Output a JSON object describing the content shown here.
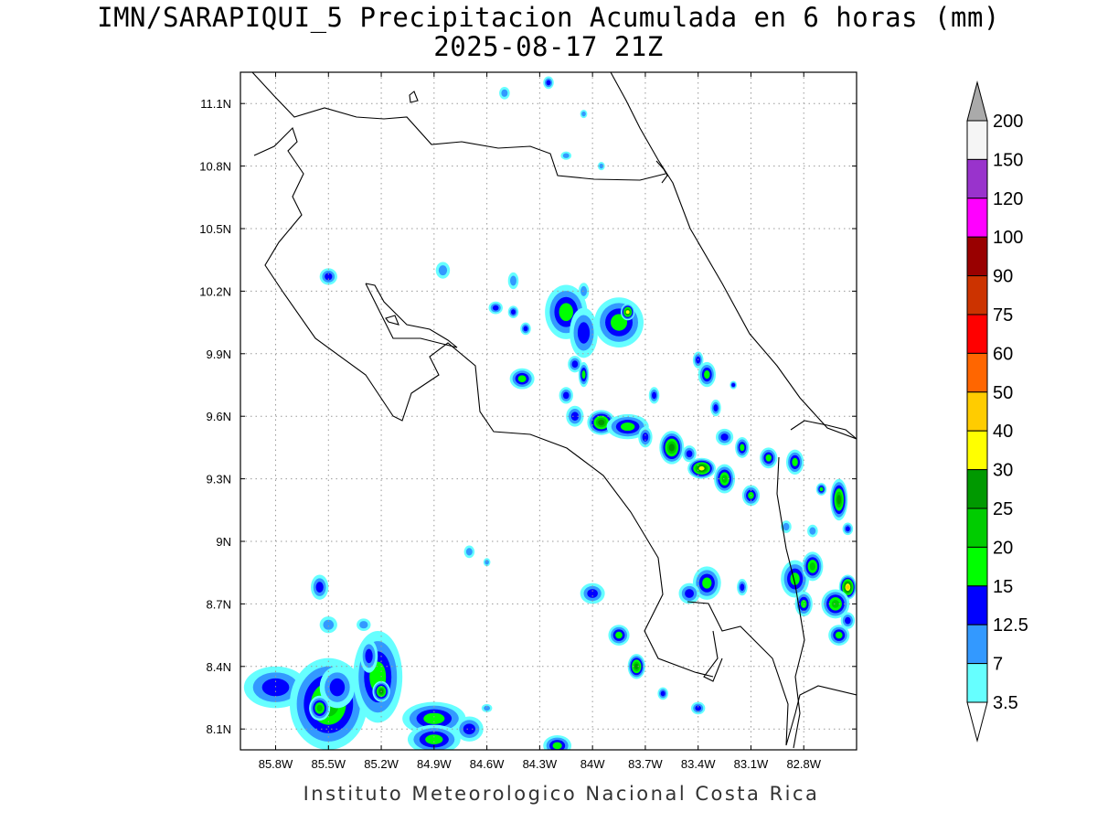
{
  "title_line1": "IMN/SARAPIQUI_5 Precipitacion Acumulada en 6 horas (mm)",
  "title_line2": "2025-08-17 21Z",
  "footer": "Instituto Meteorologico Nacional Costa Rica",
  "map": {
    "lon_range": [
      -86.0,
      -82.5
    ],
    "lat_range": [
      8.0,
      11.25
    ],
    "lat_ticks": [
      "11.1N",
      "10.8N",
      "10.5N",
      "10.2N",
      "9.9N",
      "9.6N",
      "9.3N",
      "9N",
      "8.7N",
      "8.4N",
      "8.1N"
    ],
    "lon_ticks": [
      "85.8W",
      "85.5W",
      "85.2W",
      "84.9W",
      "84.6W",
      "84.3W",
      "84W",
      "83.7W",
      "83.4W",
      "83.1W",
      "82.8W"
    ],
    "gridlines": "dotted"
  },
  "colorbar": {
    "labels": [
      "200",
      "150",
      "120",
      "100",
      "90",
      "75",
      "60",
      "50",
      "40",
      "30",
      "25",
      "20",
      "15",
      "12.5",
      "7",
      "3.5"
    ],
    "colors": [
      "#f5f5f5",
      "#9933cc",
      "#ff00ff",
      "#990000",
      "#cc3300",
      "#ff0000",
      "#ff6600",
      "#ffcc00",
      "#ffff00",
      "#009900",
      "#00cc00",
      "#00ff00",
      "#0000ff",
      "#3399ff",
      "#66ffff"
    ],
    "top_cap_color": "#aaaaaa",
    "bottom_cap_color": "#ffffff"
  },
  "cells": [
    [
      -85.8,
      8.3,
      0.18,
      0.1,
      1
    ],
    [
      -85.5,
      8.22,
      0.22,
      0.22,
      3
    ],
    [
      -85.45,
      8.3,
      0.1,
      0.1,
      1
    ],
    [
      -85.55,
      8.2,
      0.06,
      0.06,
      3
    ],
    [
      -85.22,
      8.35,
      0.14,
      0.22,
      2
    ],
    [
      -85.2,
      8.28,
      0.05,
      0.05,
      4
    ],
    [
      -85.27,
      8.45,
      0.05,
      0.08,
      1
    ],
    [
      -84.9,
      8.15,
      0.18,
      0.08,
      2
    ],
    [
      -84.9,
      8.05,
      0.15,
      0.07,
      2
    ],
    [
      -84.7,
      8.1,
      0.08,
      0.06,
      1
    ],
    [
      -85.5,
      8.6,
      0.05,
      0.04,
      0
    ],
    [
      -85.55,
      8.78,
      0.05,
      0.06,
      1
    ],
    [
      -84.2,
      8.02,
      0.08,
      0.05,
      2
    ],
    [
      -84.15,
      10.1,
      0.12,
      0.13,
      2
    ],
    [
      -84.05,
      10.0,
      0.08,
      0.12,
      1
    ],
    [
      -83.85,
      10.05,
      0.14,
      0.12,
      2
    ],
    [
      -83.8,
      10.1,
      0.04,
      0.04,
      5
    ],
    [
      -84.4,
      9.78,
      0.07,
      0.05,
      2
    ],
    [
      -84.55,
      10.12,
      0.04,
      0.03,
      1
    ],
    [
      -84.45,
      10.1,
      0.03,
      0.03,
      1
    ],
    [
      -84.38,
      10.02,
      0.03,
      0.03,
      1
    ],
    [
      -84.1,
      9.85,
      0.04,
      0.04,
      1
    ],
    [
      -84.05,
      9.8,
      0.03,
      0.06,
      2
    ],
    [
      -84.15,
      9.7,
      0.04,
      0.04,
      1
    ],
    [
      -84.1,
      9.6,
      0.05,
      0.05,
      1
    ],
    [
      -83.95,
      9.57,
      0.08,
      0.06,
      4
    ],
    [
      -83.8,
      9.55,
      0.12,
      0.06,
      2
    ],
    [
      -83.7,
      9.5,
      0.04,
      0.05,
      1
    ],
    [
      -83.65,
      9.7,
      0.03,
      0.04,
      1
    ],
    [
      -83.55,
      9.45,
      0.07,
      0.08,
      4
    ],
    [
      -83.45,
      9.42,
      0.04,
      0.04,
      1
    ],
    [
      -83.38,
      9.35,
      0.08,
      0.05,
      5
    ],
    [
      -83.25,
      9.3,
      0.06,
      0.07,
      3
    ],
    [
      -83.1,
      9.22,
      0.05,
      0.05,
      2
    ],
    [
      -83.0,
      9.4,
      0.05,
      0.05,
      2
    ],
    [
      -83.15,
      9.45,
      0.04,
      0.05,
      2
    ],
    [
      -83.25,
      9.5,
      0.05,
      0.04,
      1
    ],
    [
      -83.35,
      9.8,
      0.05,
      0.06,
      2
    ],
    [
      -83.4,
      9.87,
      0.03,
      0.04,
      1
    ],
    [
      -83.3,
      9.64,
      0.03,
      0.04,
      1
    ],
    [
      -83.2,
      9.75,
      0.02,
      0.02,
      1
    ],
    [
      -82.85,
      9.38,
      0.05,
      0.06,
      2
    ],
    [
      -82.7,
      9.25,
      0.03,
      0.03,
      2
    ],
    [
      -82.6,
      9.2,
      0.05,
      0.1,
      4
    ],
    [
      -82.55,
      9.06,
      0.03,
      0.03,
      1
    ],
    [
      -82.75,
      9.05,
      0.03,
      0.03,
      0
    ],
    [
      -82.9,
      9.07,
      0.03,
      0.03,
      0
    ],
    [
      -83.35,
      8.8,
      0.08,
      0.08,
      2
    ],
    [
      -83.45,
      8.75,
      0.06,
      0.05,
      1
    ],
    [
      -83.15,
      8.78,
      0.03,
      0.04,
      1
    ],
    [
      -82.85,
      8.82,
      0.08,
      0.09,
      2
    ],
    [
      -82.75,
      8.88,
      0.06,
      0.07,
      3
    ],
    [
      -82.8,
      8.7,
      0.05,
      0.06,
      2
    ],
    [
      -82.55,
      8.78,
      0.05,
      0.06,
      6
    ],
    [
      -82.62,
      8.7,
      0.08,
      0.07,
      3
    ],
    [
      -82.6,
      8.55,
      0.06,
      0.05,
      2
    ],
    [
      -82.55,
      8.62,
      0.04,
      0.04,
      1
    ],
    [
      -84.0,
      8.75,
      0.07,
      0.05,
      1
    ],
    [
      -83.85,
      8.55,
      0.06,
      0.05,
      2
    ],
    [
      -83.75,
      8.4,
      0.05,
      0.06,
      4
    ],
    [
      -83.6,
      8.27,
      0.03,
      0.03,
      1
    ],
    [
      -83.4,
      8.2,
      0.04,
      0.03,
      1
    ],
    [
      -84.7,
      8.95,
      0.03,
      0.03,
      0
    ],
    [
      -84.6,
      8.9,
      0.02,
      0.02,
      0
    ],
    [
      -85.3,
      8.6,
      0.04,
      0.03,
      0
    ],
    [
      -85.5,
      10.27,
      0.05,
      0.04,
      1
    ],
    [
      -84.85,
      10.3,
      0.04,
      0.04,
      0
    ],
    [
      -84.45,
      10.25,
      0.03,
      0.04,
      0
    ],
    [
      -84.6,
      8.2,
      0.03,
      0.02,
      0
    ],
    [
      -84.25,
      11.2,
      0.03,
      0.03,
      1
    ],
    [
      -84.5,
      11.15,
      0.03,
      0.03,
      0
    ],
    [
      -84.05,
      11.05,
      0.02,
      0.02,
      0
    ],
    [
      -84.15,
      10.85,
      0.03,
      0.02,
      0
    ],
    [
      -83.95,
      10.8,
      0.02,
      0.02,
      0
    ],
    [
      -84.05,
      10.2,
      0.03,
      0.04,
      0
    ]
  ]
}
